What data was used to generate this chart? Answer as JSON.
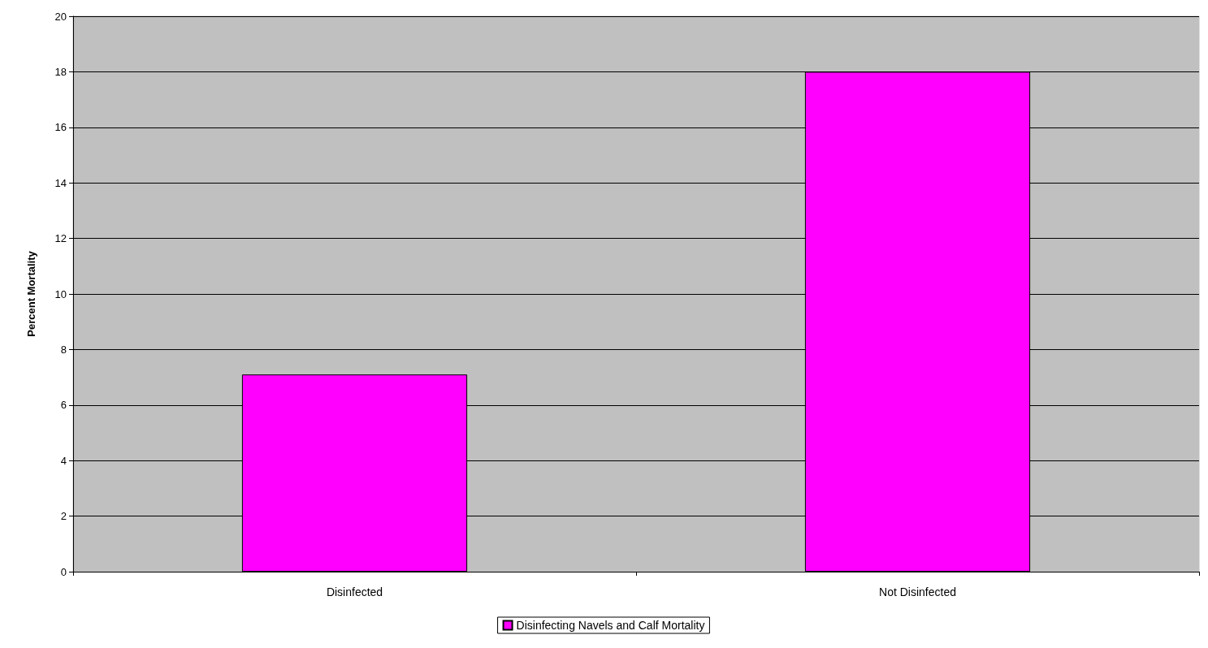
{
  "chart_data": {
    "type": "bar",
    "ylabel": "Percent Mortality",
    "categories": [
      "Disinfected",
      "Not Disinfected"
    ],
    "series": [
      {
        "name": "Disinfecting Navels and Calf Mortality",
        "color": "#ff00ff",
        "values": [
          7.1,
          18
        ]
      }
    ],
    "ylim": [
      0,
      20
    ],
    "yticks": [
      0,
      2,
      4,
      6,
      8,
      10,
      12,
      14,
      16,
      18,
      20
    ],
    "grid": "y",
    "legend": "bottom"
  }
}
